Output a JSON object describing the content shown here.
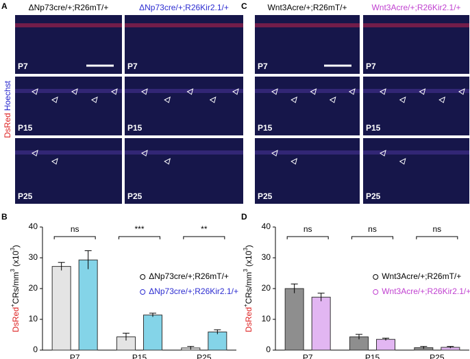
{
  "images": [
    {
      "letter": "A",
      "headers": [
        {
          "text": "ΔNp73cre/+;R26mT/+",
          "color": "#000000"
        },
        {
          "text": "ΔNp73cre/+;R26Kir2.1/+",
          "color": "#2b2bd0"
        }
      ],
      "rows": [
        "P7",
        "P15",
        "P25"
      ],
      "side": [
        "DsRed",
        "Hoechst"
      ]
    },
    {
      "letter": "C",
      "headers": [
        {
          "text": "Wnt3Acre/+;R26mT/+",
          "color": "#000000"
        },
        {
          "text": "Wnt3Acre/+;R26Kir2.1/+",
          "color": "#c040d0"
        }
      ],
      "rows": [
        "P7",
        "P15",
        "P25"
      ]
    }
  ],
  "chart_data": [
    {
      "type": "bar",
      "letter": "B",
      "y_label": [
        "DsRed",
        "+",
        "CRs/mm",
        "3",
        " (x10",
        "3",
        ")"
      ],
      "categories": [
        "P7",
        "P15",
        "P25"
      ],
      "ylim": [
        0,
        40
      ],
      "yticks": [
        0,
        10,
        20,
        30,
        40
      ],
      "significance": [
        "ns",
        "***",
        "**"
      ],
      "series": [
        {
          "name": "ΔNp73cre/+;R26mT/+",
          "color": "#e4e4e4",
          "text_color": "#000000",
          "values": [
            27.2,
            4.3,
            0.7
          ],
          "errors": [
            1.3,
            1.2,
            0.5
          ]
        },
        {
          "name": "ΔNp73cre/+;R26Kir2.1/+",
          "color": "#84d4e8",
          "text_color": "#2b2bd0",
          "values": [
            29.3,
            11.4,
            5.9
          ],
          "errors": [
            3.0,
            0.6,
            0.7
          ]
        }
      ]
    },
    {
      "type": "bar",
      "letter": "D",
      "y_label": [
        "DsRed",
        "+",
        "CRs/mm",
        "3",
        " (x10",
        "3",
        ")"
      ],
      "categories": [
        "P7",
        "P15",
        "P25"
      ],
      "ylim": [
        0,
        40
      ],
      "yticks": [
        0,
        10,
        20,
        30,
        40
      ],
      "significance": [
        "ns",
        "ns",
        "ns"
      ],
      "series": [
        {
          "name": "Wnt3Acre/+;R26mT/+",
          "color": "#8e8e8e",
          "text_color": "#000000",
          "values": [
            20.0,
            4.3,
            0.8
          ],
          "errors": [
            1.5,
            0.8,
            0.4
          ]
        },
        {
          "name": "Wnt3Acre/+;R26Kir2.1/+",
          "color": "#e2b6f2",
          "text_color": "#c040d0",
          "values": [
            17.2,
            3.5,
            0.9
          ],
          "errors": [
            1.3,
            0.4,
            0.3
          ]
        }
      ]
    }
  ]
}
